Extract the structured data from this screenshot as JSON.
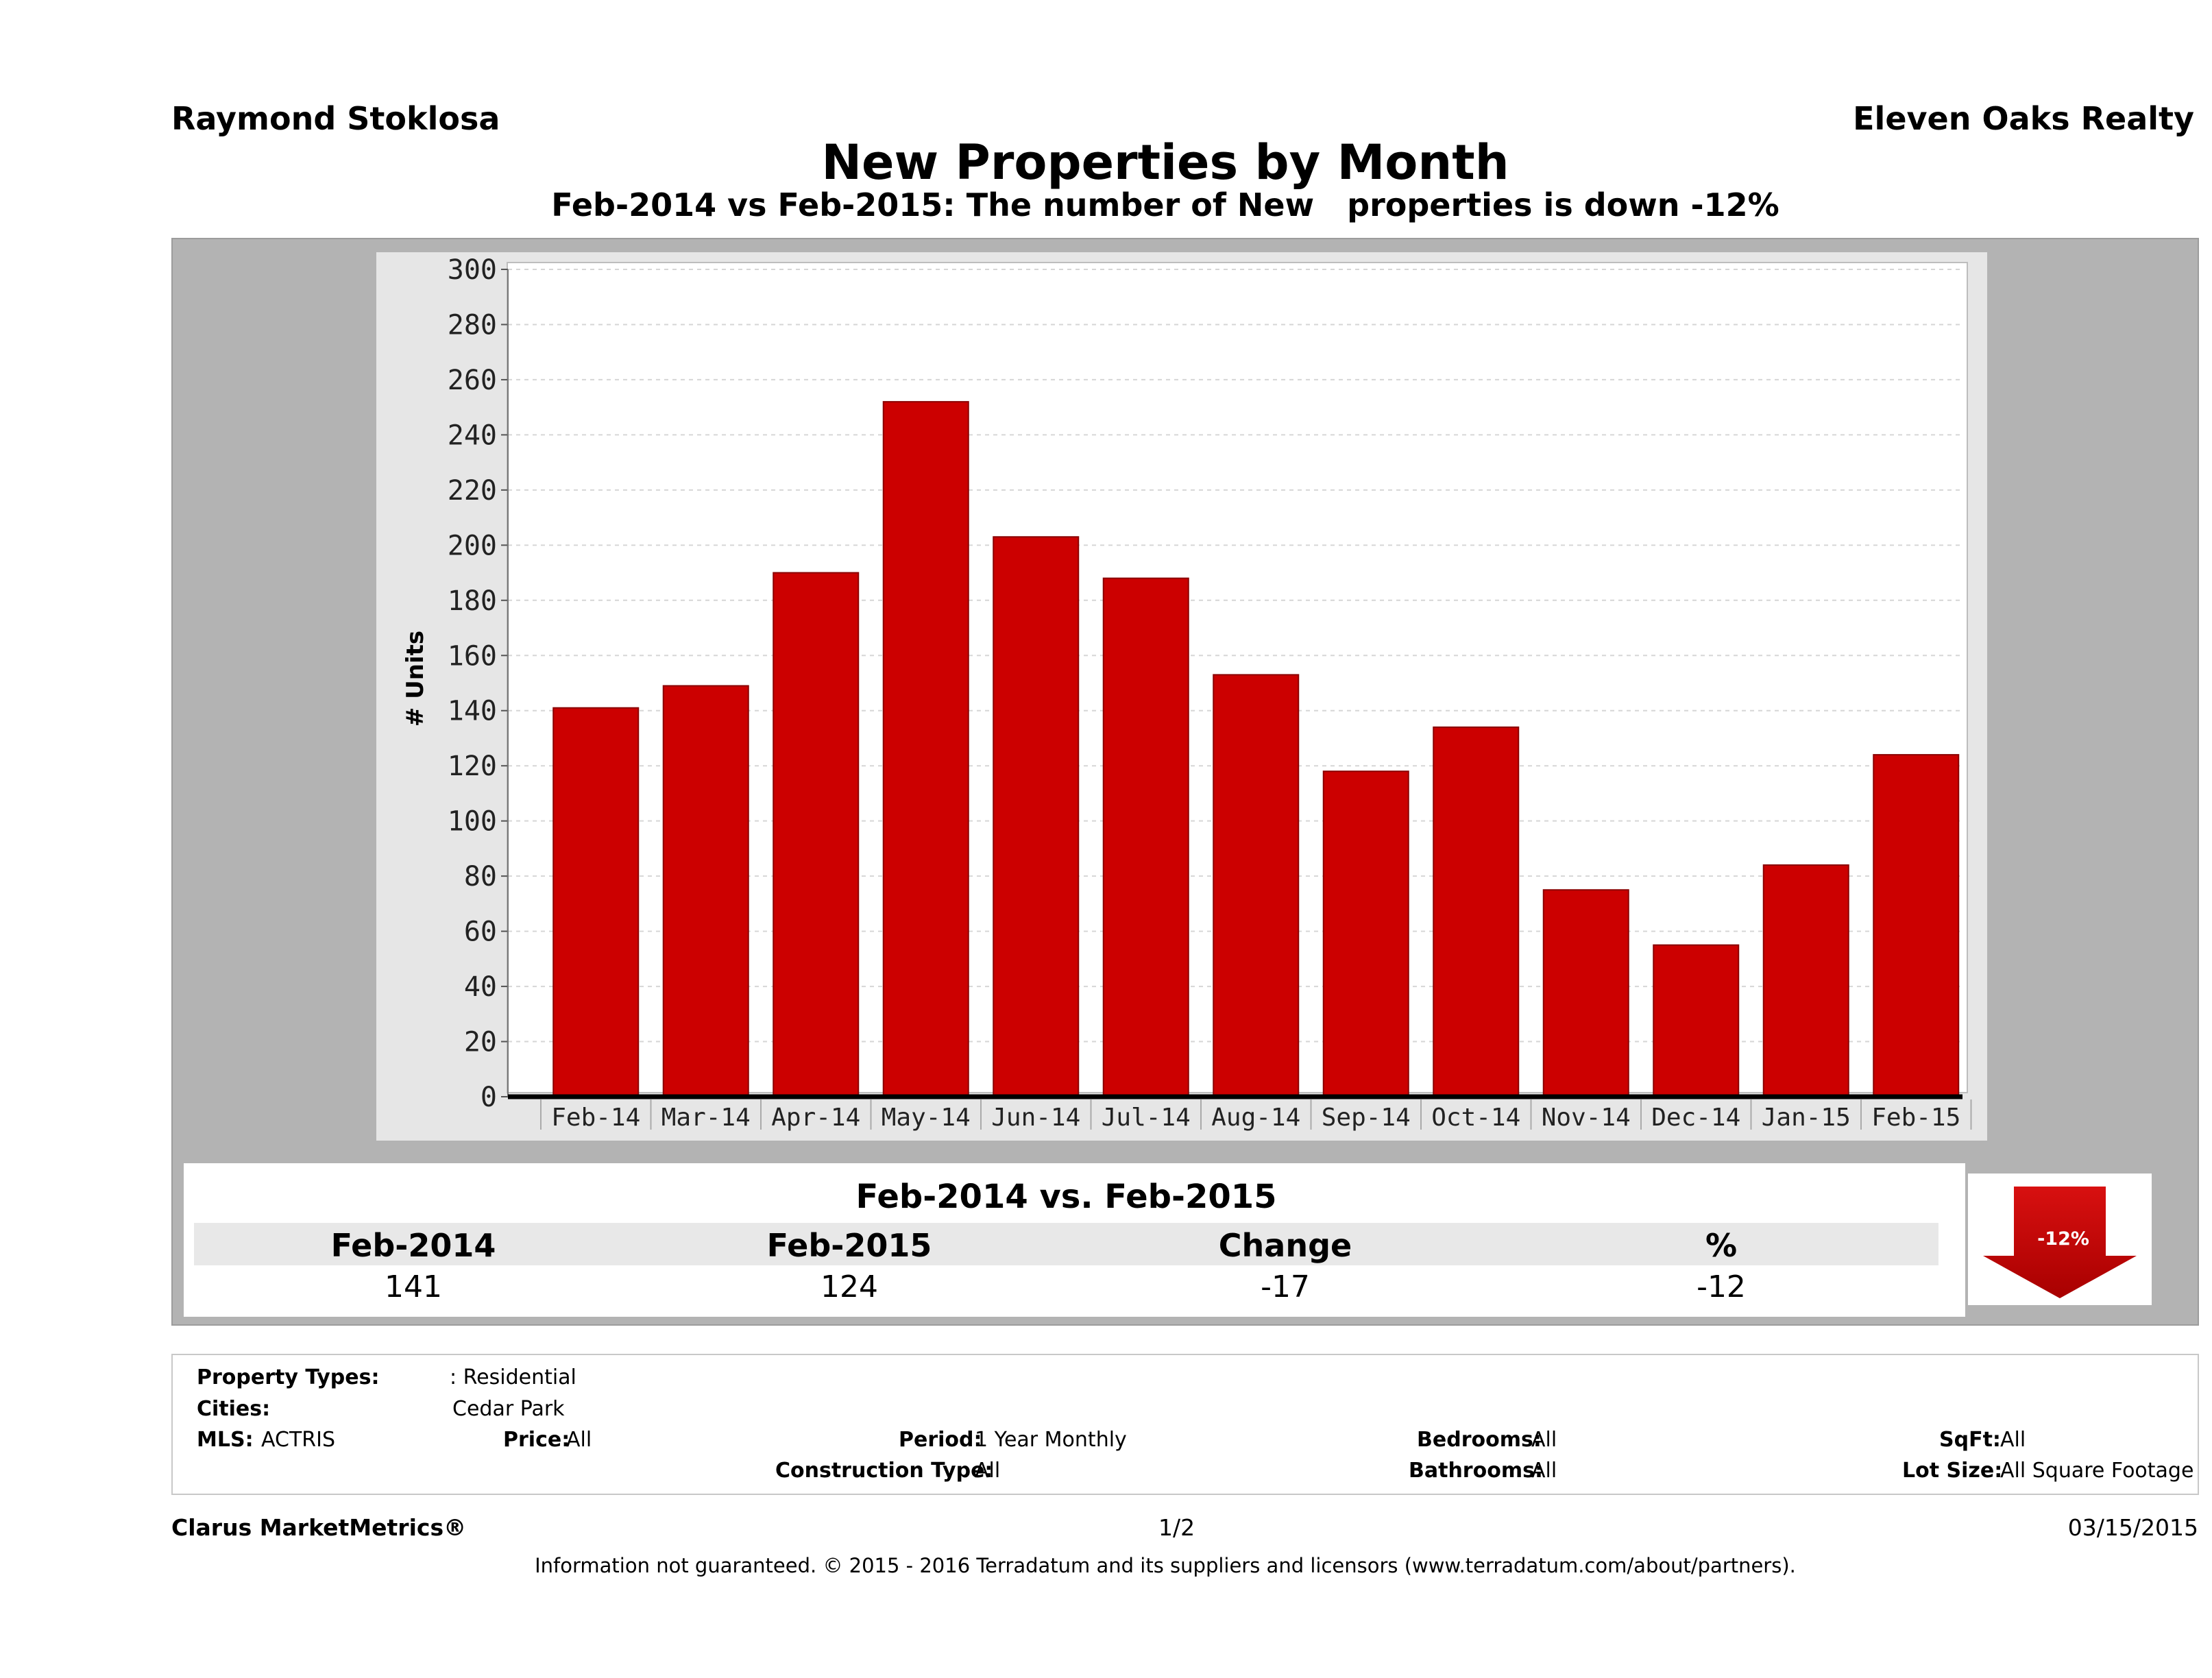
{
  "header": {
    "agent": "Raymond Stoklosa",
    "company": "Eleven Oaks Realty",
    "title": "New Properties by Month",
    "subtitle": "Feb-2014 vs Feb-2015: The number of New   properties is down -12%"
  },
  "chart_data": {
    "type": "bar",
    "categories": [
      "Feb-14",
      "Mar-14",
      "Apr-14",
      "May-14",
      "Jun-14",
      "Jul-14",
      "Aug-14",
      "Sep-14",
      "Oct-14",
      "Nov-14",
      "Dec-14",
      "Jan-15",
      "Feb-15"
    ],
    "values": [
      141,
      149,
      190,
      252,
      203,
      188,
      153,
      118,
      134,
      75,
      55,
      84,
      124
    ],
    "ylabel": "# Units",
    "ylim": [
      0,
      300
    ],
    "yticks": [
      0,
      20,
      40,
      60,
      80,
      100,
      120,
      140,
      160,
      180,
      200,
      220,
      240,
      260,
      280,
      300
    ],
    "grid": true,
    "bar_color": "#cc0000"
  },
  "summary": {
    "title": "Feb-2014 vs. Feb-2015",
    "headers": [
      "Feb-2014",
      "Feb-2015",
      "Change",
      "%"
    ],
    "values": [
      "141",
      "124",
      "-17",
      "-12"
    ],
    "badge": "-12%",
    "badge_color": "#cc0000"
  },
  "filters": {
    "property_types_label": "Property Types:",
    "property_types_value": ": Residential",
    "cities_label": "Cities:",
    "cities_value": "Cedar Park",
    "mls_label": "MLS:",
    "mls_value": "ACTRIS",
    "price_label": "Price:",
    "price_value": "All",
    "period_label": "Period:",
    "period_value": "1 Year Monthly",
    "construction_label": "Construction Type:",
    "construction_value": "All",
    "bedrooms_label": "Bedrooms:",
    "bedrooms_value": "All",
    "bathrooms_label": "Bathrooms:",
    "bathrooms_value": "All",
    "sqft_label": "SqFt:",
    "sqft_value": "All",
    "lot_label": "Lot Size:",
    "lot_value": "All Square Footage"
  },
  "footer": {
    "brand": "Clarus MarketMetrics®",
    "page": "1/2",
    "date": "03/15/2015",
    "disclaimer": "Information not guaranteed. © 2015 - 2016 Terradatum and its suppliers and licensors (www.terradatum.com/about/partners)."
  }
}
